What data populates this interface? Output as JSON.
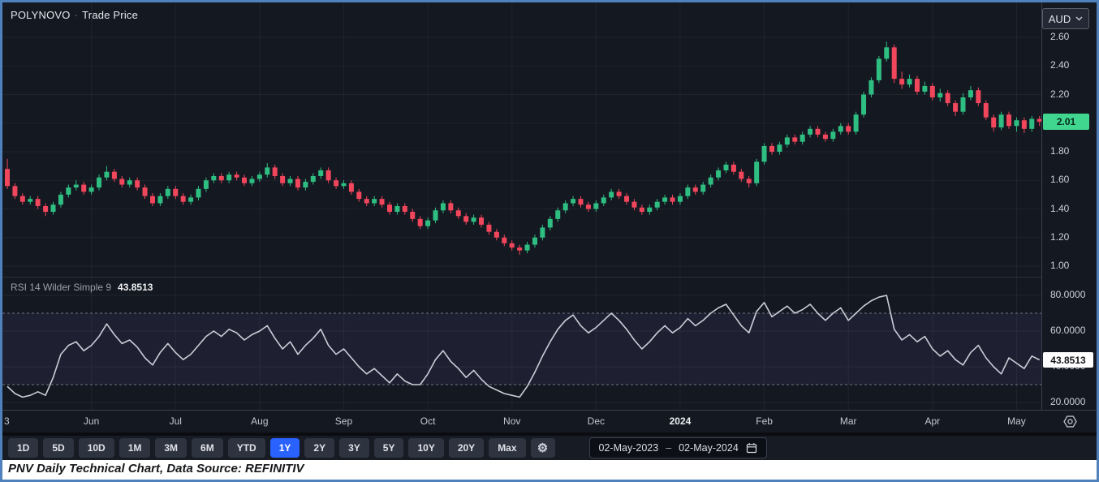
{
  "header": {
    "symbol": "POLYNOVO",
    "separator": "·",
    "series_name": "Trade Price",
    "currency": "AUD"
  },
  "price_axis": {
    "ticks": [
      "2.60",
      "2.40",
      "2.20",
      "1.80",
      "1.60",
      "1.40",
      "1.20",
      "1.00"
    ],
    "last_price": "2.01"
  },
  "rsi_axis": {
    "ticks": [
      "80.0000",
      "60.0000",
      "40.0000",
      "20.0000"
    ],
    "last_value": "43.8513"
  },
  "indicator": {
    "label": "RSI 14 Wilder Simple 9",
    "value": "43.8513"
  },
  "time_axis": {
    "labels": [
      {
        "text": "3",
        "index": 0,
        "grid": false,
        "first": true
      },
      {
        "text": "Jun",
        "index": 11
      },
      {
        "text": "Jul",
        "index": 22
      },
      {
        "text": "Aug",
        "index": 33
      },
      {
        "text": "Sep",
        "index": 44
      },
      {
        "text": "Oct",
        "index": 55
      },
      {
        "text": "Nov",
        "index": 66
      },
      {
        "text": "Dec",
        "index": 77
      },
      {
        "text": "2024",
        "index": 88,
        "year": true
      },
      {
        "text": "Feb",
        "index": 99
      },
      {
        "text": "Mar",
        "index": 110
      },
      {
        "text": "Apr",
        "index": 121
      },
      {
        "text": "May",
        "index": 132
      }
    ]
  },
  "toolbar": {
    "ranges": [
      "1D",
      "5D",
      "10D",
      "1M",
      "3M",
      "6M",
      "YTD",
      "1Y",
      "2Y",
      "3Y",
      "5Y",
      "10Y",
      "20Y",
      "Max"
    ],
    "active_range": "1Y",
    "settings_icon": "⚙",
    "date_range": {
      "start": "02-May-2023",
      "separator": "–",
      "end": "02-May-2024"
    }
  },
  "caption": "PNV Daily Technical Chart, Data Source: REFINITIV",
  "colors": {
    "background": "#141821",
    "up": "#2fbe82",
    "down": "#f2465c",
    "last_price_badge": "#40d68f",
    "rsi_line": "#cbcdd6",
    "rsi_band": "rgba(132,106,206,0.10)",
    "dashed": "#9094a0",
    "grid": "rgba(255,255,255,0.05)",
    "active_range_bg": "#2962ff"
  },
  "chart_data": {
    "type": "candlestick",
    "title": "POLYNOVO · Trade Price",
    "currency": "AUD",
    "x_range": [
      "02-May-2023",
      "02-May-2024"
    ],
    "price_grid": [
      1.0,
      1.2,
      1.4,
      1.6,
      1.8,
      2.0,
      2.2,
      2.4,
      2.6
    ],
    "price_ylim": [
      0.95,
      2.8
    ],
    "candles": [
      [
        1.68,
        1.75,
        1.54,
        1.56
      ],
      [
        1.56,
        1.58,
        1.47,
        1.49
      ],
      [
        1.49,
        1.51,
        1.43,
        1.45
      ],
      [
        1.45,
        1.49,
        1.43,
        1.47
      ],
      [
        1.47,
        1.49,
        1.4,
        1.42
      ],
      [
        1.42,
        1.44,
        1.35,
        1.38
      ],
      [
        1.38,
        1.45,
        1.36,
        1.43
      ],
      [
        1.43,
        1.52,
        1.41,
        1.5
      ],
      [
        1.5,
        1.57,
        1.48,
        1.55
      ],
      [
        1.55,
        1.6,
        1.53,
        1.57
      ],
      [
        1.57,
        1.59,
        1.5,
        1.52
      ],
      [
        1.52,
        1.57,
        1.5,
        1.55
      ],
      [
        1.55,
        1.64,
        1.53,
        1.62
      ],
      [
        1.62,
        1.7,
        1.6,
        1.66
      ],
      [
        1.66,
        1.68,
        1.59,
        1.61
      ],
      [
        1.61,
        1.63,
        1.55,
        1.57
      ],
      [
        1.57,
        1.62,
        1.55,
        1.6
      ],
      [
        1.6,
        1.62,
        1.53,
        1.55
      ],
      [
        1.55,
        1.57,
        1.47,
        1.49
      ],
      [
        1.49,
        1.51,
        1.42,
        1.44
      ],
      [
        1.44,
        1.51,
        1.42,
        1.49
      ],
      [
        1.49,
        1.56,
        1.47,
        1.54
      ],
      [
        1.54,
        1.56,
        1.47,
        1.49
      ],
      [
        1.49,
        1.51,
        1.43,
        1.45
      ],
      [
        1.45,
        1.5,
        1.43,
        1.48
      ],
      [
        1.48,
        1.56,
        1.46,
        1.54
      ],
      [
        1.54,
        1.62,
        1.52,
        1.6
      ],
      [
        1.6,
        1.65,
        1.58,
        1.63
      ],
      [
        1.63,
        1.65,
        1.58,
        1.6
      ],
      [
        1.6,
        1.66,
        1.58,
        1.64
      ],
      [
        1.64,
        1.66,
        1.6,
        1.62
      ],
      [
        1.62,
        1.64,
        1.56,
        1.58
      ],
      [
        1.58,
        1.63,
        1.56,
        1.61
      ],
      [
        1.61,
        1.66,
        1.59,
        1.64
      ],
      [
        1.64,
        1.72,
        1.62,
        1.69
      ],
      [
        1.69,
        1.71,
        1.61,
        1.63
      ],
      [
        1.63,
        1.65,
        1.56,
        1.58
      ],
      [
        1.58,
        1.63,
        1.56,
        1.61
      ],
      [
        1.61,
        1.63,
        1.53,
        1.55
      ],
      [
        1.55,
        1.61,
        1.53,
        1.59
      ],
      [
        1.59,
        1.65,
        1.57,
        1.63
      ],
      [
        1.63,
        1.69,
        1.61,
        1.67
      ],
      [
        1.67,
        1.69,
        1.58,
        1.6
      ],
      [
        1.6,
        1.62,
        1.54,
        1.56
      ],
      [
        1.56,
        1.6,
        1.54,
        1.58
      ],
      [
        1.58,
        1.6,
        1.5,
        1.52
      ],
      [
        1.52,
        1.54,
        1.45,
        1.47
      ],
      [
        1.47,
        1.49,
        1.42,
        1.44
      ],
      [
        1.44,
        1.49,
        1.42,
        1.47
      ],
      [
        1.47,
        1.49,
        1.41,
        1.43
      ],
      [
        1.43,
        1.45,
        1.36,
        1.38
      ],
      [
        1.38,
        1.44,
        1.36,
        1.42
      ],
      [
        1.42,
        1.44,
        1.36,
        1.38
      ],
      [
        1.38,
        1.4,
        1.31,
        1.33
      ],
      [
        1.33,
        1.35,
        1.26,
        1.28
      ],
      [
        1.28,
        1.34,
        1.26,
        1.32
      ],
      [
        1.32,
        1.41,
        1.3,
        1.39
      ],
      [
        1.39,
        1.46,
        1.37,
        1.44
      ],
      [
        1.44,
        1.46,
        1.37,
        1.39
      ],
      [
        1.39,
        1.41,
        1.33,
        1.35
      ],
      [
        1.35,
        1.37,
        1.29,
        1.31
      ],
      [
        1.31,
        1.36,
        1.29,
        1.34
      ],
      [
        1.34,
        1.36,
        1.27,
        1.29
      ],
      [
        1.29,
        1.31,
        1.22,
        1.24
      ],
      [
        1.24,
        1.26,
        1.18,
        1.2
      ],
      [
        1.2,
        1.22,
        1.14,
        1.16
      ],
      [
        1.16,
        1.18,
        1.11,
        1.13
      ],
      [
        1.13,
        1.15,
        1.08,
        1.11
      ],
      [
        1.11,
        1.17,
        1.09,
        1.15
      ],
      [
        1.15,
        1.22,
        1.13,
        1.2
      ],
      [
        1.2,
        1.29,
        1.18,
        1.27
      ],
      [
        1.27,
        1.35,
        1.25,
        1.33
      ],
      [
        1.33,
        1.41,
        1.31,
        1.39
      ],
      [
        1.39,
        1.46,
        1.37,
        1.44
      ],
      [
        1.44,
        1.49,
        1.42,
        1.47
      ],
      [
        1.47,
        1.49,
        1.41,
        1.43
      ],
      [
        1.43,
        1.45,
        1.38,
        1.4
      ],
      [
        1.4,
        1.46,
        1.38,
        1.44
      ],
      [
        1.44,
        1.5,
        1.42,
        1.48
      ],
      [
        1.48,
        1.54,
        1.46,
        1.52
      ],
      [
        1.52,
        1.54,
        1.47,
        1.49
      ],
      [
        1.49,
        1.51,
        1.43,
        1.45
      ],
      [
        1.45,
        1.47,
        1.39,
        1.41
      ],
      [
        1.41,
        1.43,
        1.36,
        1.38
      ],
      [
        1.38,
        1.43,
        1.36,
        1.41
      ],
      [
        1.41,
        1.47,
        1.39,
        1.45
      ],
      [
        1.45,
        1.5,
        1.43,
        1.48
      ],
      [
        1.48,
        1.5,
        1.43,
        1.45
      ],
      [
        1.45,
        1.51,
        1.43,
        1.49
      ],
      [
        1.49,
        1.57,
        1.47,
        1.55
      ],
      [
        1.55,
        1.57,
        1.5,
        1.52
      ],
      [
        1.52,
        1.59,
        1.5,
        1.57
      ],
      [
        1.57,
        1.64,
        1.55,
        1.62
      ],
      [
        1.62,
        1.69,
        1.6,
        1.67
      ],
      [
        1.67,
        1.73,
        1.65,
        1.71
      ],
      [
        1.71,
        1.73,
        1.64,
        1.66
      ],
      [
        1.66,
        1.68,
        1.59,
        1.61
      ],
      [
        1.61,
        1.63,
        1.55,
        1.58
      ],
      [
        1.58,
        1.75,
        1.56,
        1.73
      ],
      [
        1.73,
        1.86,
        1.71,
        1.84
      ],
      [
        1.84,
        1.86,
        1.78,
        1.8
      ],
      [
        1.8,
        1.87,
        1.78,
        1.85
      ],
      [
        1.85,
        1.92,
        1.83,
        1.9
      ],
      [
        1.9,
        1.92,
        1.85,
        1.87
      ],
      [
        1.87,
        1.94,
        1.85,
        1.92
      ],
      [
        1.92,
        1.98,
        1.9,
        1.96
      ],
      [
        1.96,
        1.98,
        1.9,
        1.92
      ],
      [
        1.92,
        1.94,
        1.87,
        1.89
      ],
      [
        1.89,
        1.96,
        1.87,
        1.94
      ],
      [
        1.94,
        2.0,
        1.92,
        1.98
      ],
      [
        1.98,
        2.0,
        1.92,
        1.94
      ],
      [
        1.94,
        2.08,
        1.92,
        2.06
      ],
      [
        2.06,
        2.22,
        2.04,
        2.2
      ],
      [
        2.2,
        2.32,
        2.18,
        2.3
      ],
      [
        2.3,
        2.47,
        2.28,
        2.45
      ],
      [
        2.45,
        2.57,
        2.43,
        2.53
      ],
      [
        2.53,
        2.55,
        2.28,
        2.31
      ],
      [
        2.31,
        2.36,
        2.24,
        2.27
      ],
      [
        2.27,
        2.34,
        2.25,
        2.31
      ],
      [
        2.31,
        2.33,
        2.2,
        2.22
      ],
      [
        2.22,
        2.29,
        2.2,
        2.26
      ],
      [
        2.26,
        2.28,
        2.16,
        2.18
      ],
      [
        2.18,
        2.24,
        2.15,
        2.21
      ],
      [
        2.21,
        2.23,
        2.12,
        2.14
      ],
      [
        2.14,
        2.16,
        2.05,
        2.08
      ],
      [
        2.08,
        2.21,
        2.06,
        2.18
      ],
      [
        2.18,
        2.26,
        2.16,
        2.23
      ],
      [
        2.23,
        2.25,
        2.12,
        2.14
      ],
      [
        2.14,
        2.16,
        2.02,
        2.04
      ],
      [
        2.04,
        2.06,
        1.94,
        1.97
      ],
      [
        1.97,
        2.08,
        1.95,
        2.06
      ],
      [
        2.06,
        2.08,
        1.96,
        1.98
      ],
      [
        1.98,
        2.04,
        1.94,
        2.02
      ],
      [
        2.02,
        2.04,
        1.93,
        1.96
      ],
      [
        1.96,
        2.05,
        1.94,
        2.03
      ],
      [
        2.03,
        2.05,
        1.98,
        2.01
      ]
    ],
    "rsi": {
      "type": "line",
      "label": "RSI 14 Wilder Simple 9",
      "last_value": 43.8513,
      "overbought": 70,
      "oversold": 30,
      "grid": [
        20,
        40,
        60,
        80
      ],
      "ylim": [
        16,
        90
      ],
      "values": [
        29,
        25,
        23,
        24,
        26,
        24,
        34,
        47,
        52,
        54,
        49,
        52,
        57,
        64,
        58,
        53,
        55,
        51,
        45,
        41,
        48,
        53,
        48,
        44,
        47,
        52,
        57,
        60,
        57,
        61,
        59,
        55,
        58,
        60,
        63,
        56,
        50,
        54,
        47,
        52,
        56,
        61,
        52,
        47,
        50,
        45,
        40,
        36,
        39,
        35,
        31,
        36,
        32,
        30,
        30,
        36,
        44,
        49,
        43,
        39,
        34,
        38,
        33,
        29,
        27,
        25,
        24,
        23,
        29,
        37,
        46,
        54,
        61,
        66,
        69,
        63,
        59,
        62,
        66,
        70,
        66,
        61,
        55,
        50,
        54,
        59,
        63,
        59,
        62,
        67,
        63,
        66,
        70,
        73,
        75,
        69,
        63,
        59,
        71,
        76,
        68,
        71,
        74,
        70,
        72,
        75,
        70,
        66,
        70,
        73,
        66,
        70,
        74,
        77,
        79,
        80,
        61,
        55,
        58,
        54,
        57,
        50,
        46,
        49,
        44,
        41,
        48,
        52,
        45,
        40,
        36,
        45,
        42,
        39,
        46,
        43.8513
      ]
    }
  }
}
